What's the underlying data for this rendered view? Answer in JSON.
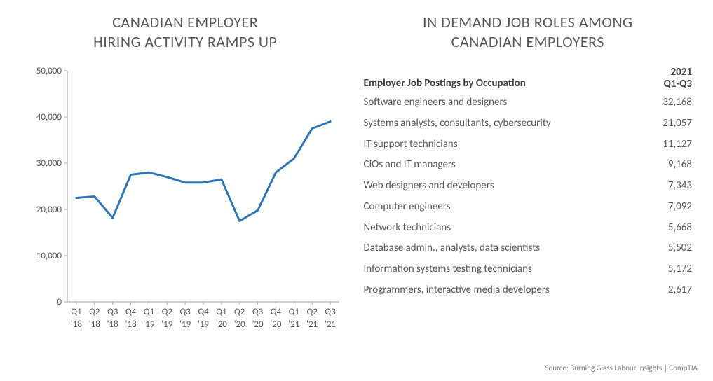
{
  "chart": {
    "type": "line",
    "title_line1": "CANADIAN EMPLOYER",
    "title_line2": "HIRING ACTIVITY RAMPS UP",
    "title_fontsize": 22,
    "background_color": "#ffffff",
    "line_color": "#2e75b6",
    "line_width": 3,
    "axis_color": "#a6a6a6",
    "grid_color": "#d9d9d9",
    "text_color": "#595959",
    "label_fontsize": 13,
    "ylim": [
      0,
      50000
    ],
    "ytick_step": 10000,
    "ytick_labels": [
      "0",
      "10,000",
      "20,000",
      "30,000",
      "40,000",
      "50,000"
    ],
    "x_labels_top": [
      "Q1",
      "Q2",
      "Q3",
      "Q4",
      "Q1",
      "Q2",
      "Q3",
      "Q4",
      "Q1",
      "Q2",
      "Q3",
      "Q4",
      "Q1",
      "Q2",
      "Q3"
    ],
    "x_labels_bot": [
      "'18",
      "'18",
      "'18",
      "'18",
      "'19",
      "'19",
      "'19",
      "'19",
      "'20",
      "'20",
      "'20",
      "'20",
      "'21",
      "'21",
      "'21"
    ],
    "values": [
      22500,
      22800,
      18200,
      27500,
      28000,
      27000,
      25800,
      25800,
      26500,
      17500,
      19800,
      28000,
      31000,
      37500,
      39000
    ]
  },
  "table": {
    "title_line1": "IN DEMAND JOB ROLES AMONG",
    "title_line2": "CANADIAN EMPLOYERS",
    "header_label": "Employer Job Postings by Occupation",
    "period_line1": "2021",
    "period_line2": "Q1-Q3",
    "header_fontsize": 15,
    "row_fontsize": 15,
    "text_color": "#595959",
    "header_color": "#404040",
    "rows": [
      {
        "label": "Software engineers and designers",
        "value": "32,168"
      },
      {
        "label": "Systems analysts, consultants, cybersecurity",
        "value": "21,057"
      },
      {
        "label": "IT support technicians",
        "value": "11,127"
      },
      {
        "label": "CIOs and IT managers",
        "value": "9,168"
      },
      {
        "label": "Web designers and developers",
        "value": "7,343"
      },
      {
        "label": "Computer engineers",
        "value": "7,092"
      },
      {
        "label": "Network technicians",
        "value": "5,668"
      },
      {
        "label": "Database admin., analysts, data scientists",
        "value": "5,502"
      },
      {
        "label": "Information systems testing technicians",
        "value": "5,172"
      },
      {
        "label": "Programmers, interactive media developers",
        "value": "2,617"
      }
    ]
  },
  "source": "Source: Burning Glass Labour Insights | CompTIA"
}
